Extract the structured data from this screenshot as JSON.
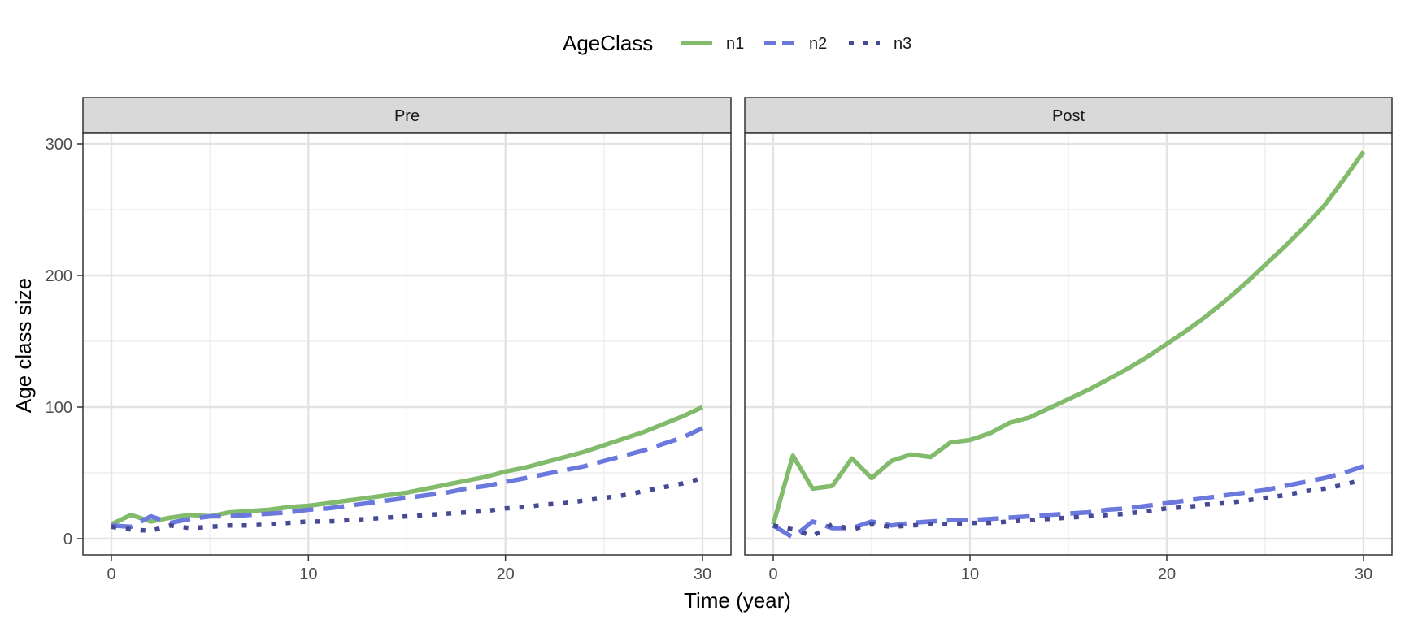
{
  "chart_data": {
    "type": "line",
    "xlabel": "Time (year)",
    "ylabel": "Age class size",
    "xlim": [
      0,
      30
    ],
    "ylim": [
      0,
      300
    ],
    "x_ticks": [
      0,
      10,
      20,
      30
    ],
    "y_ticks": [
      0,
      100,
      200,
      300
    ],
    "grid": true,
    "legend": {
      "title": "AgeClass",
      "position": "top",
      "entries": [
        "n1",
        "n2",
        "n3"
      ]
    },
    "series_styles": [
      {
        "name": "n1",
        "color": "#82bb6b",
        "dash": "solid"
      },
      {
        "name": "n2",
        "color": "#6b78dd",
        "dash": "dashed"
      },
      {
        "name": "n3",
        "color": "#464a94",
        "dash": "dotted"
      }
    ],
    "panels": [
      {
        "title": "Pre",
        "x": [
          0,
          1,
          2,
          3,
          4,
          5,
          6,
          7,
          8,
          9,
          10,
          11,
          12,
          13,
          14,
          15,
          16,
          17,
          18,
          19,
          20,
          21,
          22,
          23,
          24,
          25,
          26,
          27,
          28,
          29,
          30
        ],
        "series": [
          {
            "name": "n1",
            "values": [
              11,
              18,
              13,
              16,
              18,
              17,
              20,
              21,
              22,
              24,
              25,
              27,
              29,
              31,
              33,
              35,
              38,
              41,
              44,
              47,
              51,
              54,
              58,
              62,
              66,
              71,
              76,
              81,
              87,
              93,
              100
            ]
          },
          {
            "name": "n2",
            "values": [
              10,
              9,
              17,
              12,
              15,
              17,
              17,
              18,
              19,
              20,
              22,
              23,
              25,
              27,
              29,
              31,
              33,
              35,
              38,
              40,
              43,
              46,
              49,
              52,
              55,
              59,
              63,
              67,
              72,
              77,
              84
            ]
          },
          {
            "name": "n3",
            "values": [
              9,
              7,
              6,
              10,
              8,
              9,
              10,
              10,
              11,
              12,
              13,
              13,
              14,
              15,
              16,
              17,
              18,
              19,
              20,
              21,
              23,
              24,
              26,
              27,
              29,
              31,
              33,
              36,
              39,
              42,
              46
            ]
          }
        ]
      },
      {
        "title": "Post",
        "x": [
          0,
          1,
          2,
          3,
          4,
          5,
          6,
          7,
          8,
          9,
          10,
          11,
          12,
          13,
          14,
          15,
          16,
          17,
          18,
          19,
          20,
          21,
          22,
          23,
          24,
          25,
          26,
          27,
          28,
          29,
          30
        ],
        "series": [
          {
            "name": "n1",
            "values": [
              11,
              63,
              38,
              40,
              61,
              46,
              59,
              64,
              62,
              73,
              75,
              80,
              88,
              92,
              99,
              106,
              113,
              121,
              129,
              138,
              148,
              158,
              169,
              181,
              194,
              208,
              222,
              237,
              253,
              273,
              294
            ]
          },
          {
            "name": "n2",
            "values": [
              10,
              1,
              13,
              8,
              8,
              13,
              10,
              12,
              13,
              14,
              14,
              15,
              16,
              17,
              18,
              19,
              20,
              22,
              23,
              25,
              27,
              29,
              31,
              33,
              35,
              37,
              40,
              43,
              46,
              50,
              55
            ]
          },
          {
            "name": "n3",
            "values": [
              10,
              7,
              2,
              11,
              7,
              11,
              9,
              10,
              11,
              11,
              12,
              12,
              13,
              14,
              15,
              16,
              17,
              18,
              19,
              21,
              23,
              24,
              26,
              27,
              29,
              31,
              33,
              36,
              38,
              41,
              45
            ]
          }
        ]
      }
    ]
  }
}
